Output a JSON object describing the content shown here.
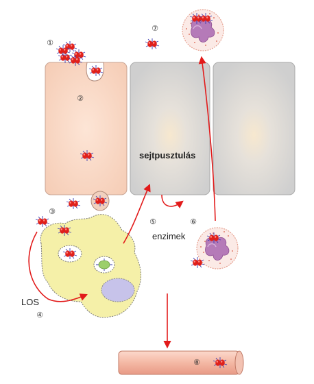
{
  "labels": {
    "cell_death": "sejtpusztulás",
    "enzymes": "enzimek",
    "los": "LOS"
  },
  "steps": {
    "s1": "①",
    "s2": "②",
    "s3": "③",
    "s4": "④",
    "s5": "⑤",
    "s6": "⑥",
    "s7": "⑦",
    "s8": "⑧"
  },
  "colors": {
    "epithelial_cell": "#f8d7c4",
    "damaged_cell": "#dadada",
    "macrophage": "#f5f0a8",
    "neutrophil_nucleus": "#b57ab8",
    "bacterium": "#e0201b",
    "arrow": "#e21a1a",
    "blood_vessel": "#f4b9a6"
  },
  "icons": {
    "bacterium": "diplococcus-icon",
    "neutrophil": "neutrophil-icon",
    "macrophage": "macrophage-icon"
  }
}
